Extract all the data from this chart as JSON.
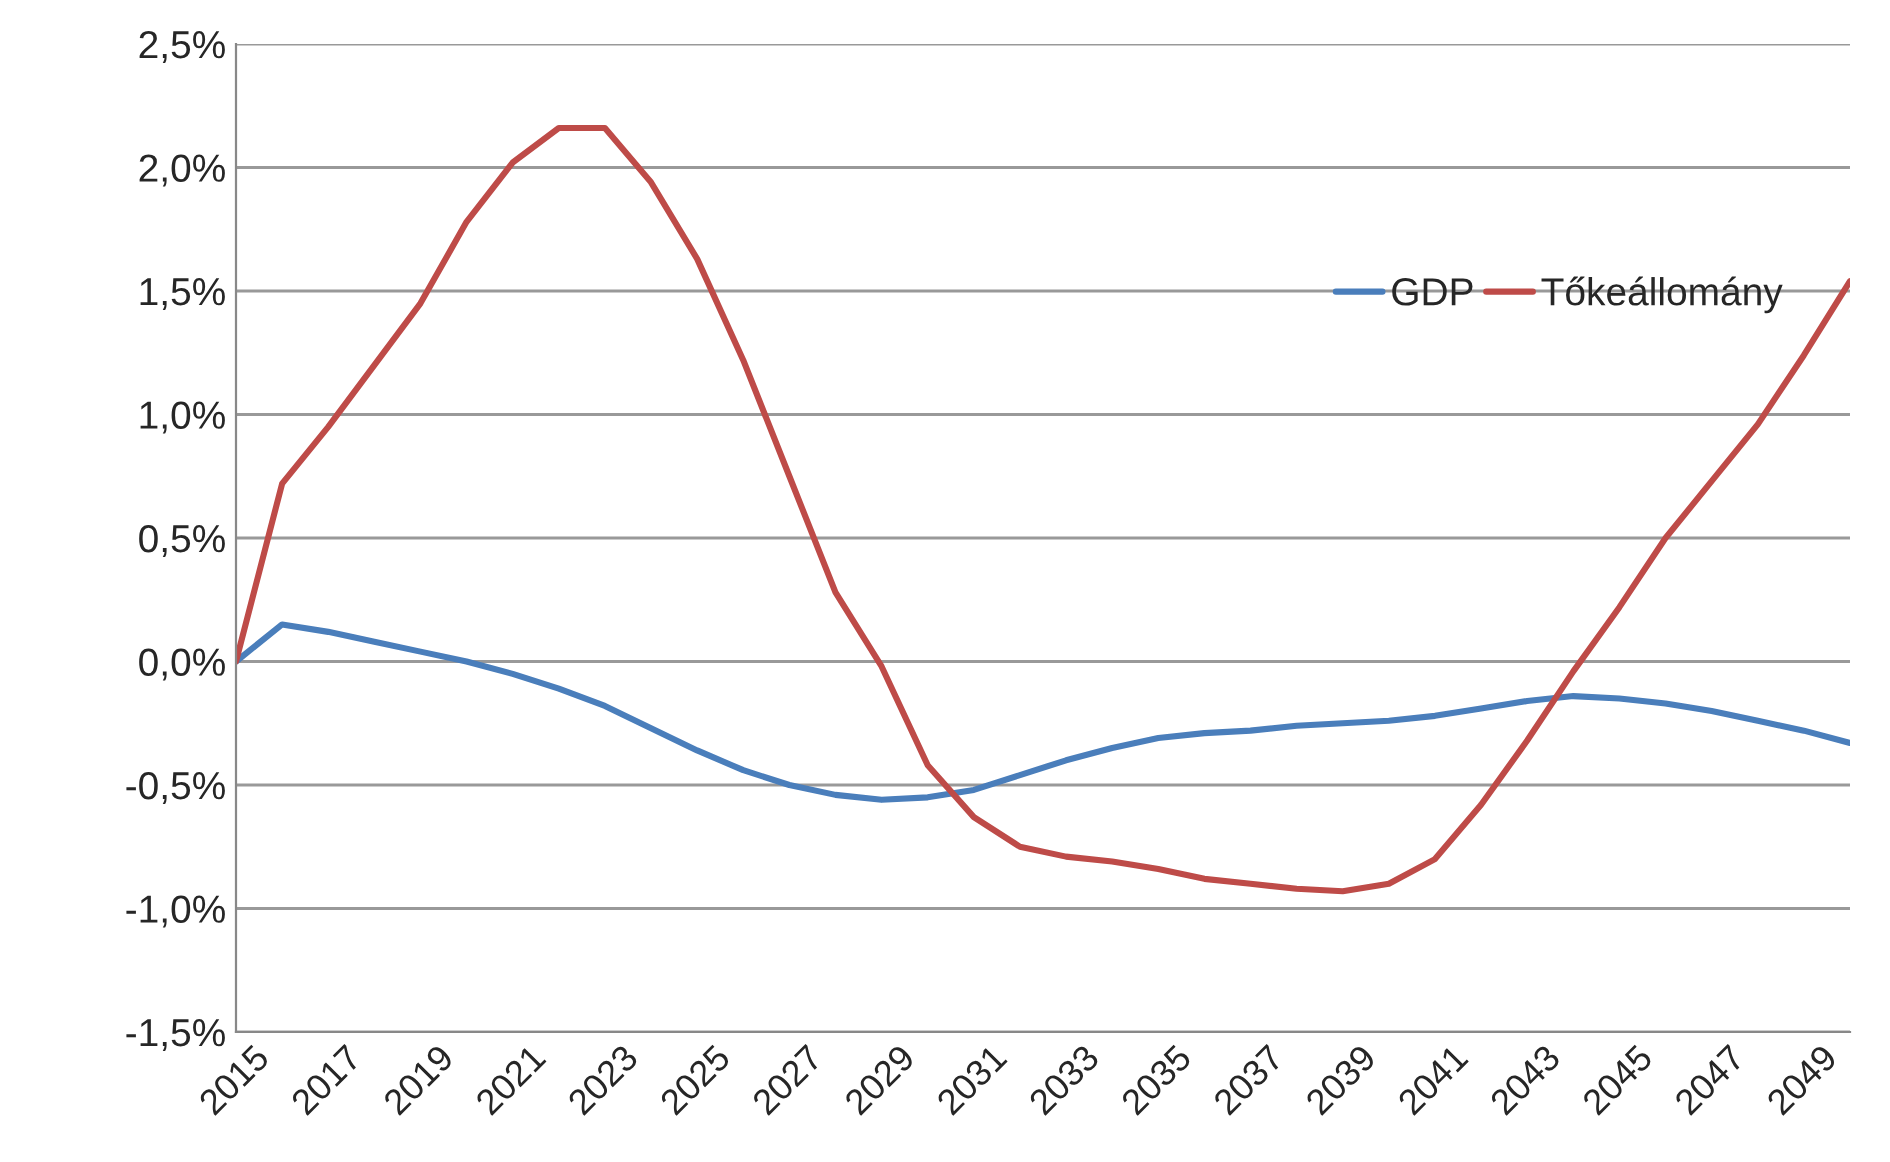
{
  "chart_data": {
    "type": "line",
    "x": [
      2015,
      2016,
      2017,
      2018,
      2019,
      2020,
      2021,
      2022,
      2023,
      2024,
      2025,
      2026,
      2027,
      2028,
      2029,
      2030,
      2031,
      2032,
      2033,
      2034,
      2035,
      2036,
      2037,
      2038,
      2039,
      2040,
      2041,
      2042,
      2043,
      2044,
      2045,
      2046,
      2047,
      2048,
      2049,
      2050
    ],
    "series": [
      {
        "name": "GDP",
        "color": "#4a7ebb",
        "values": [
          0,
          0.15,
          0.12,
          0.08,
          0.04,
          0.0,
          -0.05,
          -0.11,
          -0.18,
          -0.27,
          -0.36,
          -0.44,
          -0.5,
          -0.54,
          -0.56,
          -0.55,
          -0.52,
          -0.46,
          -0.4,
          -0.35,
          -0.31,
          -0.29,
          -0.28,
          -0.26,
          -0.25,
          -0.24,
          -0.22,
          -0.19,
          -0.16,
          -0.14,
          -0.15,
          -0.17,
          -0.2,
          -0.24,
          -0.28,
          -0.33
        ]
      },
      {
        "name": "Tőkeállomány",
        "color": "#be4b48",
        "values": [
          0,
          0.72,
          0.95,
          1.2,
          1.45,
          1.78,
          2.02,
          2.16,
          2.16,
          1.94,
          1.63,
          1.22,
          0.75,
          0.28,
          -0.02,
          -0.42,
          -0.63,
          -0.75,
          -0.79,
          -0.81,
          -0.84,
          -0.88,
          -0.9,
          -0.92,
          -0.93,
          -0.9,
          -0.8,
          -0.58,
          -0.32,
          -0.04,
          0.22,
          0.5,
          0.73,
          0.96,
          1.24,
          1.54
        ]
      }
    ],
    "xlim": [
      2015,
      2050
    ],
    "xticks": [
      2015,
      2017,
      2019,
      2021,
      2023,
      2025,
      2027,
      2029,
      2031,
      2033,
      2035,
      2037,
      2039,
      2041,
      2043,
      2045,
      2047,
      2049
    ],
    "ylim": [
      -1.5,
      2.5
    ],
    "yticks": [
      {
        "value": -1.5,
        "label": "-1,5%"
      },
      {
        "value": -1.0,
        "label": "-1,0%"
      },
      {
        "value": -0.5,
        "label": "-0,5%"
      },
      {
        "value": 0,
        "label": "0,0%"
      },
      {
        "value": 0.5,
        "label": "0,5%"
      },
      {
        "value": 1.0,
        "label": "1,0%"
      },
      {
        "value": 1.5,
        "label": "1,5%"
      },
      {
        "value": 2.0,
        "label": "2,0%"
      },
      {
        "value": 2.5,
        "label": "2,5%"
      }
    ],
    "grid": "y",
    "legend": "top right",
    "line_style": "solid",
    "marker": "none"
  }
}
